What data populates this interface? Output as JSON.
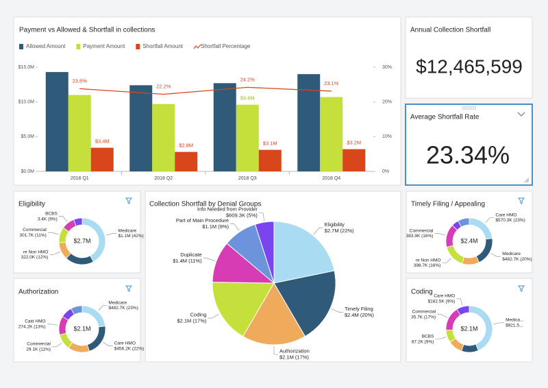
{
  "kpis": [
    {
      "title": "Annual Collection Shortfall",
      "value": "$12,465,599"
    },
    {
      "title": "Average Shortfall Rate",
      "value": "23.34%"
    }
  ],
  "chart_data": [
    {
      "type": "bar",
      "title": "Payment vs Allowed & Shortfall in collections",
      "categories": [
        "2018 Q1",
        "2018 Q2",
        "2018 Q3",
        "2018 Q4"
      ],
      "series": [
        {
          "name": "Allowed Amount",
          "color": "#2f5a78",
          "values": [
            14300000,
            12400000,
            12700000,
            14000000
          ]
        },
        {
          "name": "Payment Amount",
          "color": "#c5e03b",
          "values": [
            11000000,
            9700000,
            9600000,
            10700000
          ],
          "value_labels": [
            null,
            null,
            "$9.6M",
            null
          ]
        },
        {
          "name": "Shortfall Amount",
          "color": "#d8461b",
          "values": [
            3400000,
            2800000,
            3100000,
            3200000
          ],
          "value_labels": [
            "$3.4M",
            "$2.8M",
            "$3.1M",
            "$3.2M"
          ]
        },
        {
          "name": "Shortfall Percentage",
          "type": "line",
          "axis": "y2",
          "color": "#d8461b",
          "values": [
            23.8,
            22.2,
            24.2,
            23.1
          ],
          "value_labels": [
            "23.8%",
            "22.2%",
            "24.2%",
            "23.1%"
          ]
        }
      ],
      "ylim": [
        0,
        15000000
      ],
      "yticks": [
        {
          "value": 0,
          "label": "$0.0M"
        },
        {
          "value": 5000000,
          "label": "$5.0M"
        },
        {
          "value": 10000000,
          "label": "$10.0M"
        },
        {
          "value": 15000000,
          "label": "$15.0M"
        }
      ],
      "y2lim": [
        0,
        30
      ],
      "y2ticks": [
        {
          "value": 0,
          "label": "0%"
        },
        {
          "value": 10,
          "label": "10%"
        },
        {
          "value": 20,
          "label": "20%"
        },
        {
          "value": 30,
          "label": "30%"
        }
      ],
      "legend": "top",
      "grid": false
    },
    {
      "type": "pie",
      "title": "Collection Shortfall by Denial Groups",
      "categories": [
        "Eligibility",
        "Timely Filing",
        "Authorization",
        "Coding",
        "Duplicate",
        "Part of Main Procedure",
        "Info Needed from Provider"
      ],
      "values": [
        22,
        20,
        17,
        17,
        11,
        9,
        5
      ],
      "value_labels": [
        "$2.7M (22%)",
        "$2.4M (20%)",
        "$2.1M (17%)",
        "$2.1M (17%)",
        "$1.4M (11%)",
        "$1.1M (9%)",
        "$609.3K (5%)"
      ],
      "colors": [
        "#a9dcf2",
        "#2f5a78",
        "#f0aa5c",
        "#c5e03b",
        "#d63db4",
        "#6c93dc",
        "#7a45ee"
      ]
    },
    {
      "type": "donut",
      "title": "Eligibility",
      "center_label": "$2.7M",
      "categories": [
        "Medicare",
        null,
        "re Non HMO",
        "Commercial",
        "BCBS",
        null
      ],
      "values": [
        42,
        20,
        12,
        11,
        9,
        6
      ],
      "value_labels": [
        "$1.1M (42%)",
        null,
        "322.0K (12%)",
        "301.7K (11%)",
        "3.4K (9%)",
        null
      ],
      "colors": [
        "#a9dcf2",
        "#2f5a78",
        "#f0aa5c",
        "#c5e03b",
        "#d63db4",
        "#7a45ee"
      ]
    },
    {
      "type": "donut",
      "title": "Authorization",
      "center_label": "$2.1M",
      "categories": [
        "Medicare",
        "Care HMO",
        null,
        "Commercial",
        "Caid HMO",
        null,
        null
      ],
      "values": [
        23,
        22,
        15,
        11,
        13,
        8,
        8
      ],
      "value_labels": [
        "$482.7K (23%)",
        "$456.2K (22%)",
        null,
        "29.1K (11%)",
        "274.2K (13%)",
        null,
        null
      ],
      "colors": [
        "#a9dcf2",
        "#2f5a78",
        "#f0aa5c",
        "#c5e03b",
        "#d63db4",
        "#7a45ee",
        "#6c93dc"
      ]
    },
    {
      "type": "donut",
      "title": "Timely Filing / Appealing",
      "center_label": "$2.4M",
      "categories": [
        "Care HMO",
        "Medicare",
        null,
        "re Non HMO",
        "Commercial",
        null,
        null
      ],
      "values": [
        23,
        20,
        12,
        16,
        16,
        5,
        8
      ],
      "value_labels": [
        "$570.3K (23%)",
        "$482.7K (20%)",
        null,
        "398.7K (16%)",
        "383.9K (16%)",
        null,
        null
      ],
      "colors": [
        "#a9dcf2",
        "#2f5a78",
        "#f0aa5c",
        "#c5e03b",
        "#d63db4",
        "#7a45ee",
        "#6c93dc"
      ]
    },
    {
      "type": "donut",
      "title": "Coding",
      "center_label": "$2.1M",
      "categories": [
        "Medica...",
        null,
        null,
        "BCBS",
        "Commercial",
        "Care HMO"
      ],
      "values": [
        44,
        12,
        10,
        9,
        17,
        9
      ],
      "value_labels": [
        "$921.5...",
        null,
        null,
        "87.2K (9%)",
        "35.7K (17%)",
        "$182.5K (9%)"
      ],
      "colors": [
        "#a9dcf2",
        "#2f5a78",
        "#f0aa5c",
        "#c5e03b",
        "#d63db4",
        "#7a45ee"
      ]
    }
  ]
}
